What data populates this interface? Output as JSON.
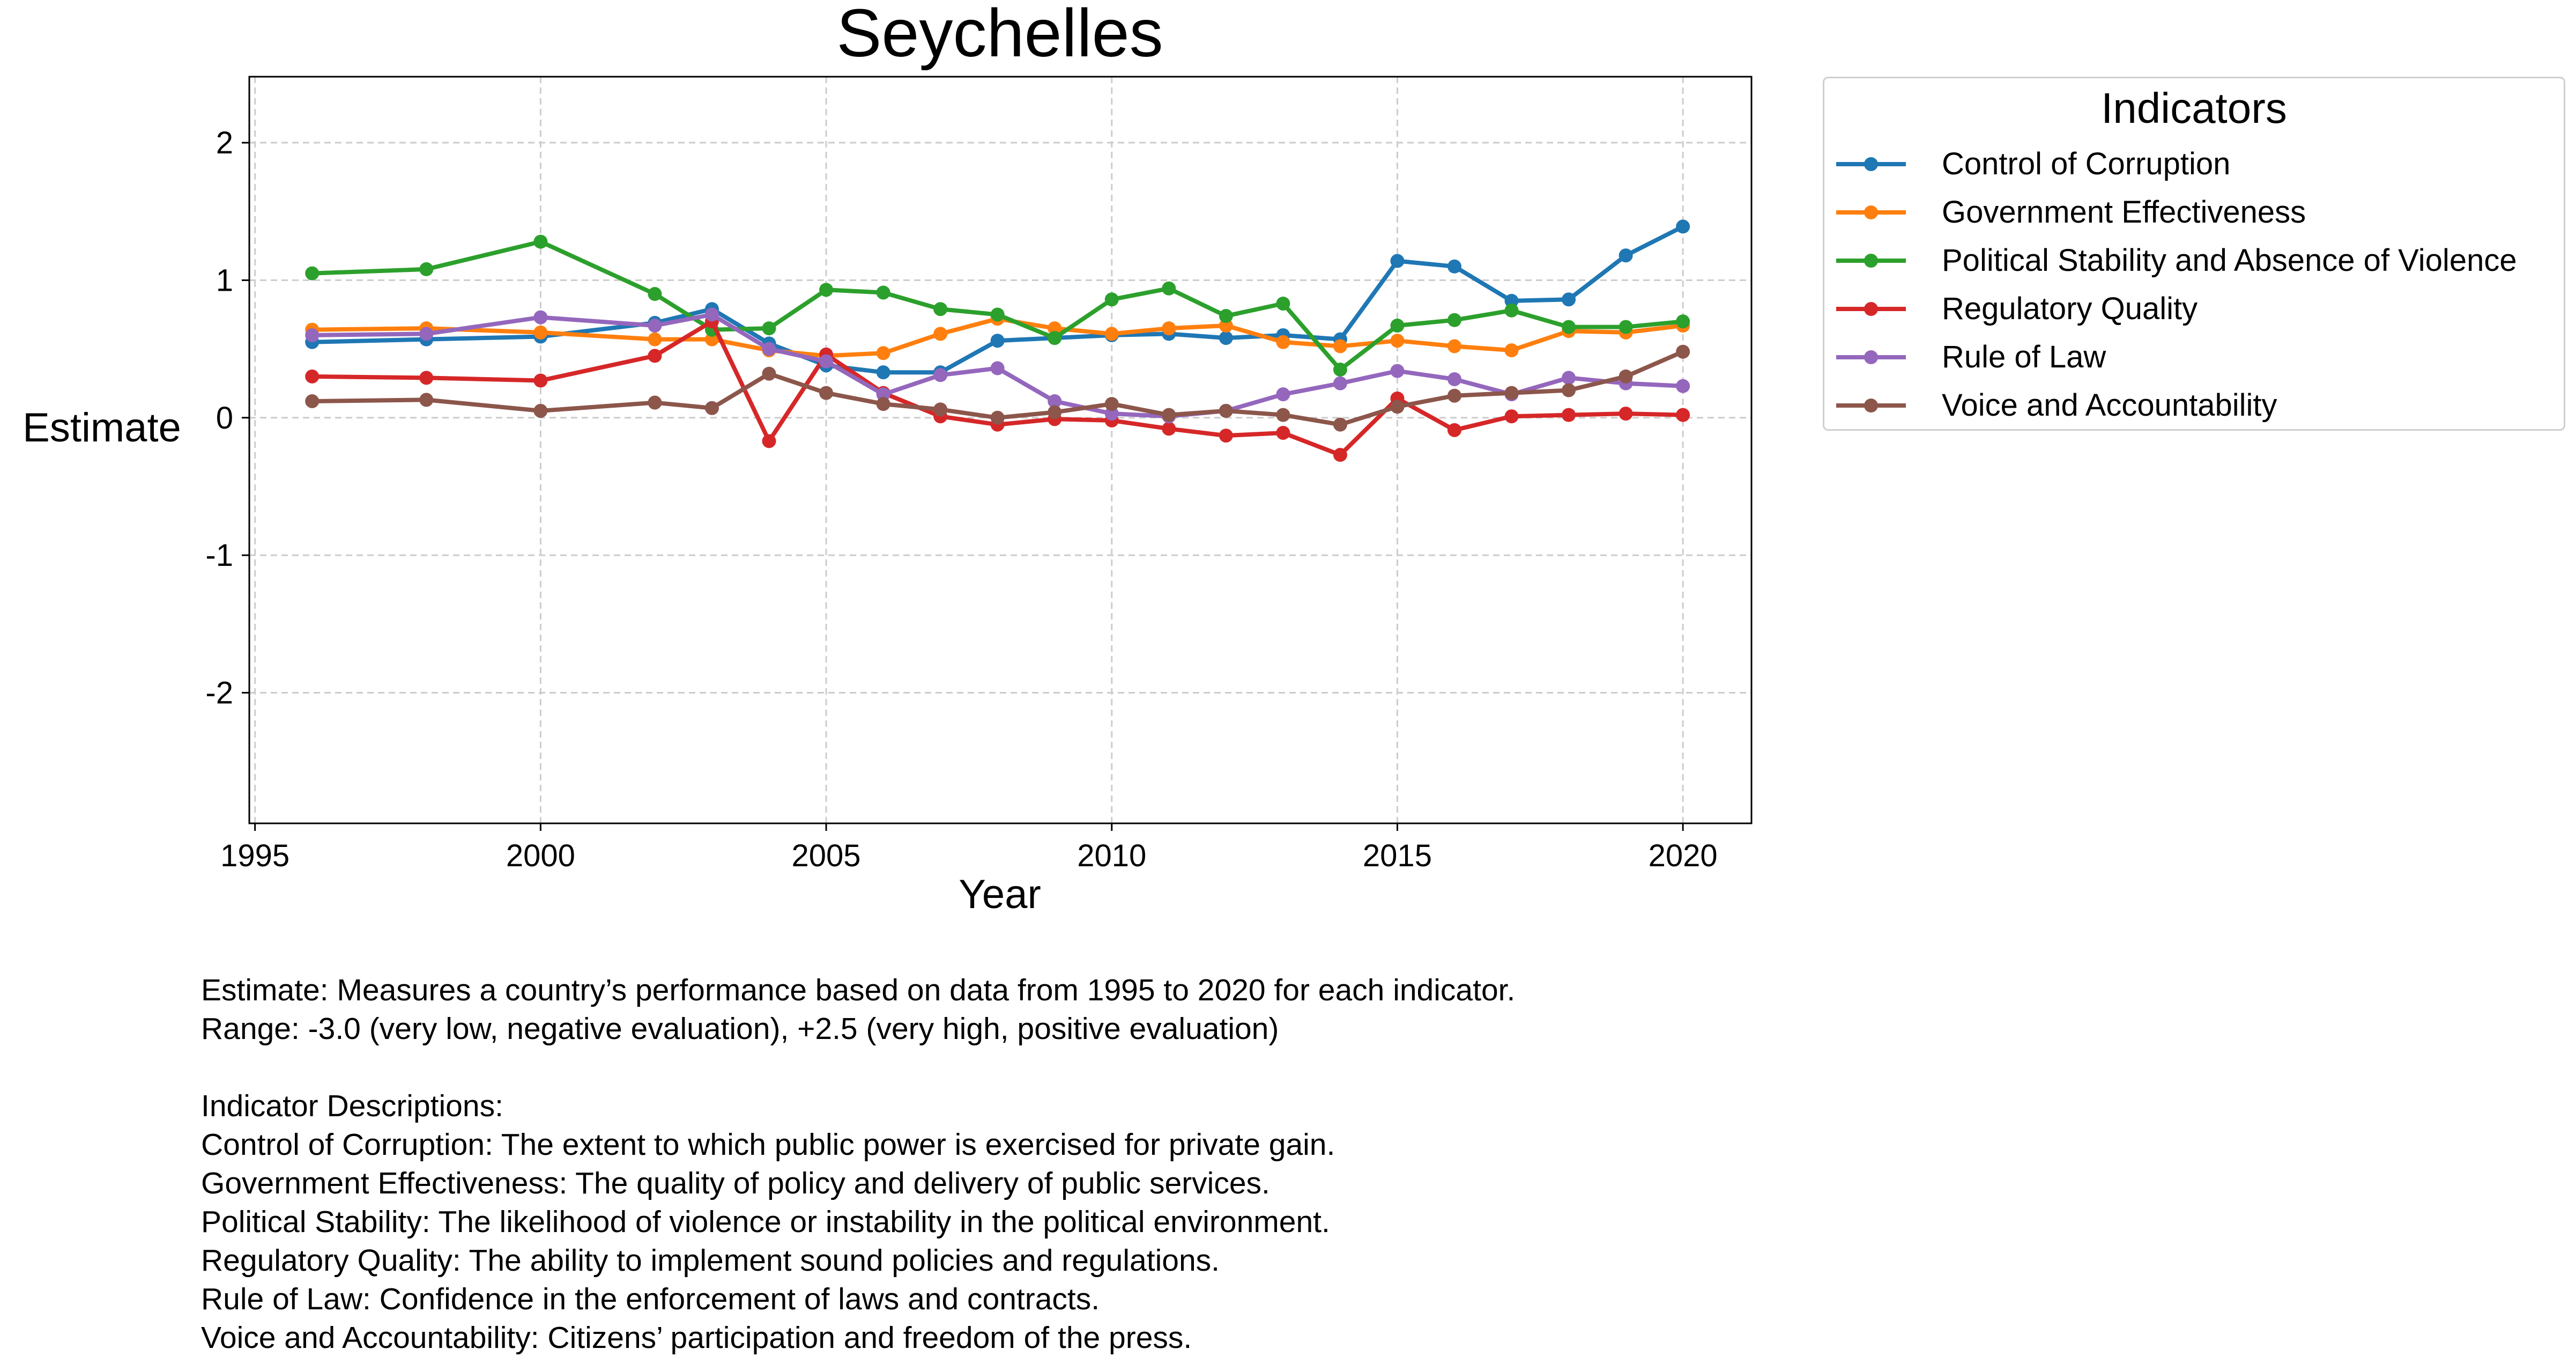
{
  "chart_data": {
    "type": "line",
    "title": "Seychelles",
    "xlabel": "Year",
    "ylabel": "Estimate",
    "xlim": [
      1994.9,
      2021.2
    ],
    "ylim": [
      -2.95,
      2.48
    ],
    "xticks": [
      1995,
      2000,
      2005,
      2010,
      2015,
      2020
    ],
    "yticks": [
      -2,
      -1,
      0,
      1,
      2
    ],
    "grid": true,
    "legend": {
      "title": "Indicators",
      "placement": "outside-right"
    },
    "x": [
      1996,
      1998,
      2000,
      2002,
      2003,
      2004,
      2005,
      2006,
      2007,
      2008,
      2009,
      2010,
      2011,
      2012,
      2013,
      2014,
      2015,
      2016,
      2017,
      2018,
      2019,
      2020
    ],
    "series": [
      {
        "name": "Control of Corruption",
        "color": "#1f77b4",
        "values": [
          0.55,
          0.57,
          0.59,
          0.69,
          0.79,
          0.54,
          0.38,
          0.33,
          0.33,
          0.56,
          0.58,
          0.6,
          0.61,
          0.58,
          0.6,
          0.57,
          1.14,
          1.1,
          0.85,
          0.86,
          1.18,
          1.39
        ]
      },
      {
        "name": "Government Effectiveness",
        "color": "#ff7f0e",
        "values": [
          0.64,
          0.65,
          0.62,
          0.57,
          0.57,
          0.49,
          0.45,
          0.47,
          0.61,
          0.72,
          0.65,
          0.61,
          0.65,
          0.67,
          0.55,
          0.52,
          0.56,
          0.52,
          0.49,
          0.63,
          0.62,
          0.67
        ]
      },
      {
        "name": "Political Stability and Absence of Violence",
        "color": "#2ca02c",
        "values": [
          1.05,
          1.08,
          1.28,
          0.9,
          0.64,
          0.65,
          0.93,
          0.91,
          0.79,
          0.75,
          0.58,
          0.86,
          0.94,
          0.74,
          0.83,
          0.35,
          0.67,
          0.71,
          0.78,
          0.66,
          0.66,
          0.7
        ]
      },
      {
        "name": "Regulatory Quality",
        "color": "#d62728",
        "values": [
          0.3,
          0.29,
          0.27,
          0.45,
          0.7,
          -0.17,
          0.46,
          0.18,
          0.01,
          -0.05,
          -0.01,
          -0.02,
          -0.08,
          -0.13,
          -0.11,
          -0.27,
          0.14,
          -0.09,
          0.01,
          0.02,
          0.03,
          0.02
        ]
      },
      {
        "name": "Rule of Law",
        "color": "#9467bd",
        "values": [
          0.6,
          0.61,
          0.73,
          0.67,
          0.75,
          0.5,
          0.41,
          0.17,
          0.31,
          0.36,
          0.12,
          0.03,
          0.01,
          0.05,
          0.17,
          0.25,
          0.34,
          0.28,
          0.17,
          0.29,
          0.25,
          0.23
        ]
      },
      {
        "name": "Voice and Accountability",
        "color": "#8c564b",
        "values": [
          0.12,
          0.13,
          0.05,
          0.11,
          0.07,
          0.32,
          0.18,
          0.1,
          0.06,
          0.0,
          0.04,
          0.1,
          0.02,
          0.05,
          0.02,
          -0.05,
          0.08,
          0.16,
          0.18,
          0.2,
          0.3,
          0.48
        ]
      }
    ]
  },
  "notes": [
    "Estimate: Measures a country’s performance based on data from 1995 to 2020 for each indicator.",
    "Range: -3.0 (very low, negative evaluation), +2.5 (very high, positive evaluation)",
    "",
    "Indicator Descriptions:",
    "Control of Corruption: The extent to which public power is exercised for private gain.",
    "Government Effectiveness: The quality of policy and delivery of public services.",
    "Political Stability: The likelihood of violence or instability in the political environment.",
    "Regulatory Quality: The ability to implement sound policies and regulations.",
    "Rule of Law: Confidence in the enforcement of laws and contracts.",
    "Voice and Accountability: Citizens’ participation and freedom of the press."
  ]
}
